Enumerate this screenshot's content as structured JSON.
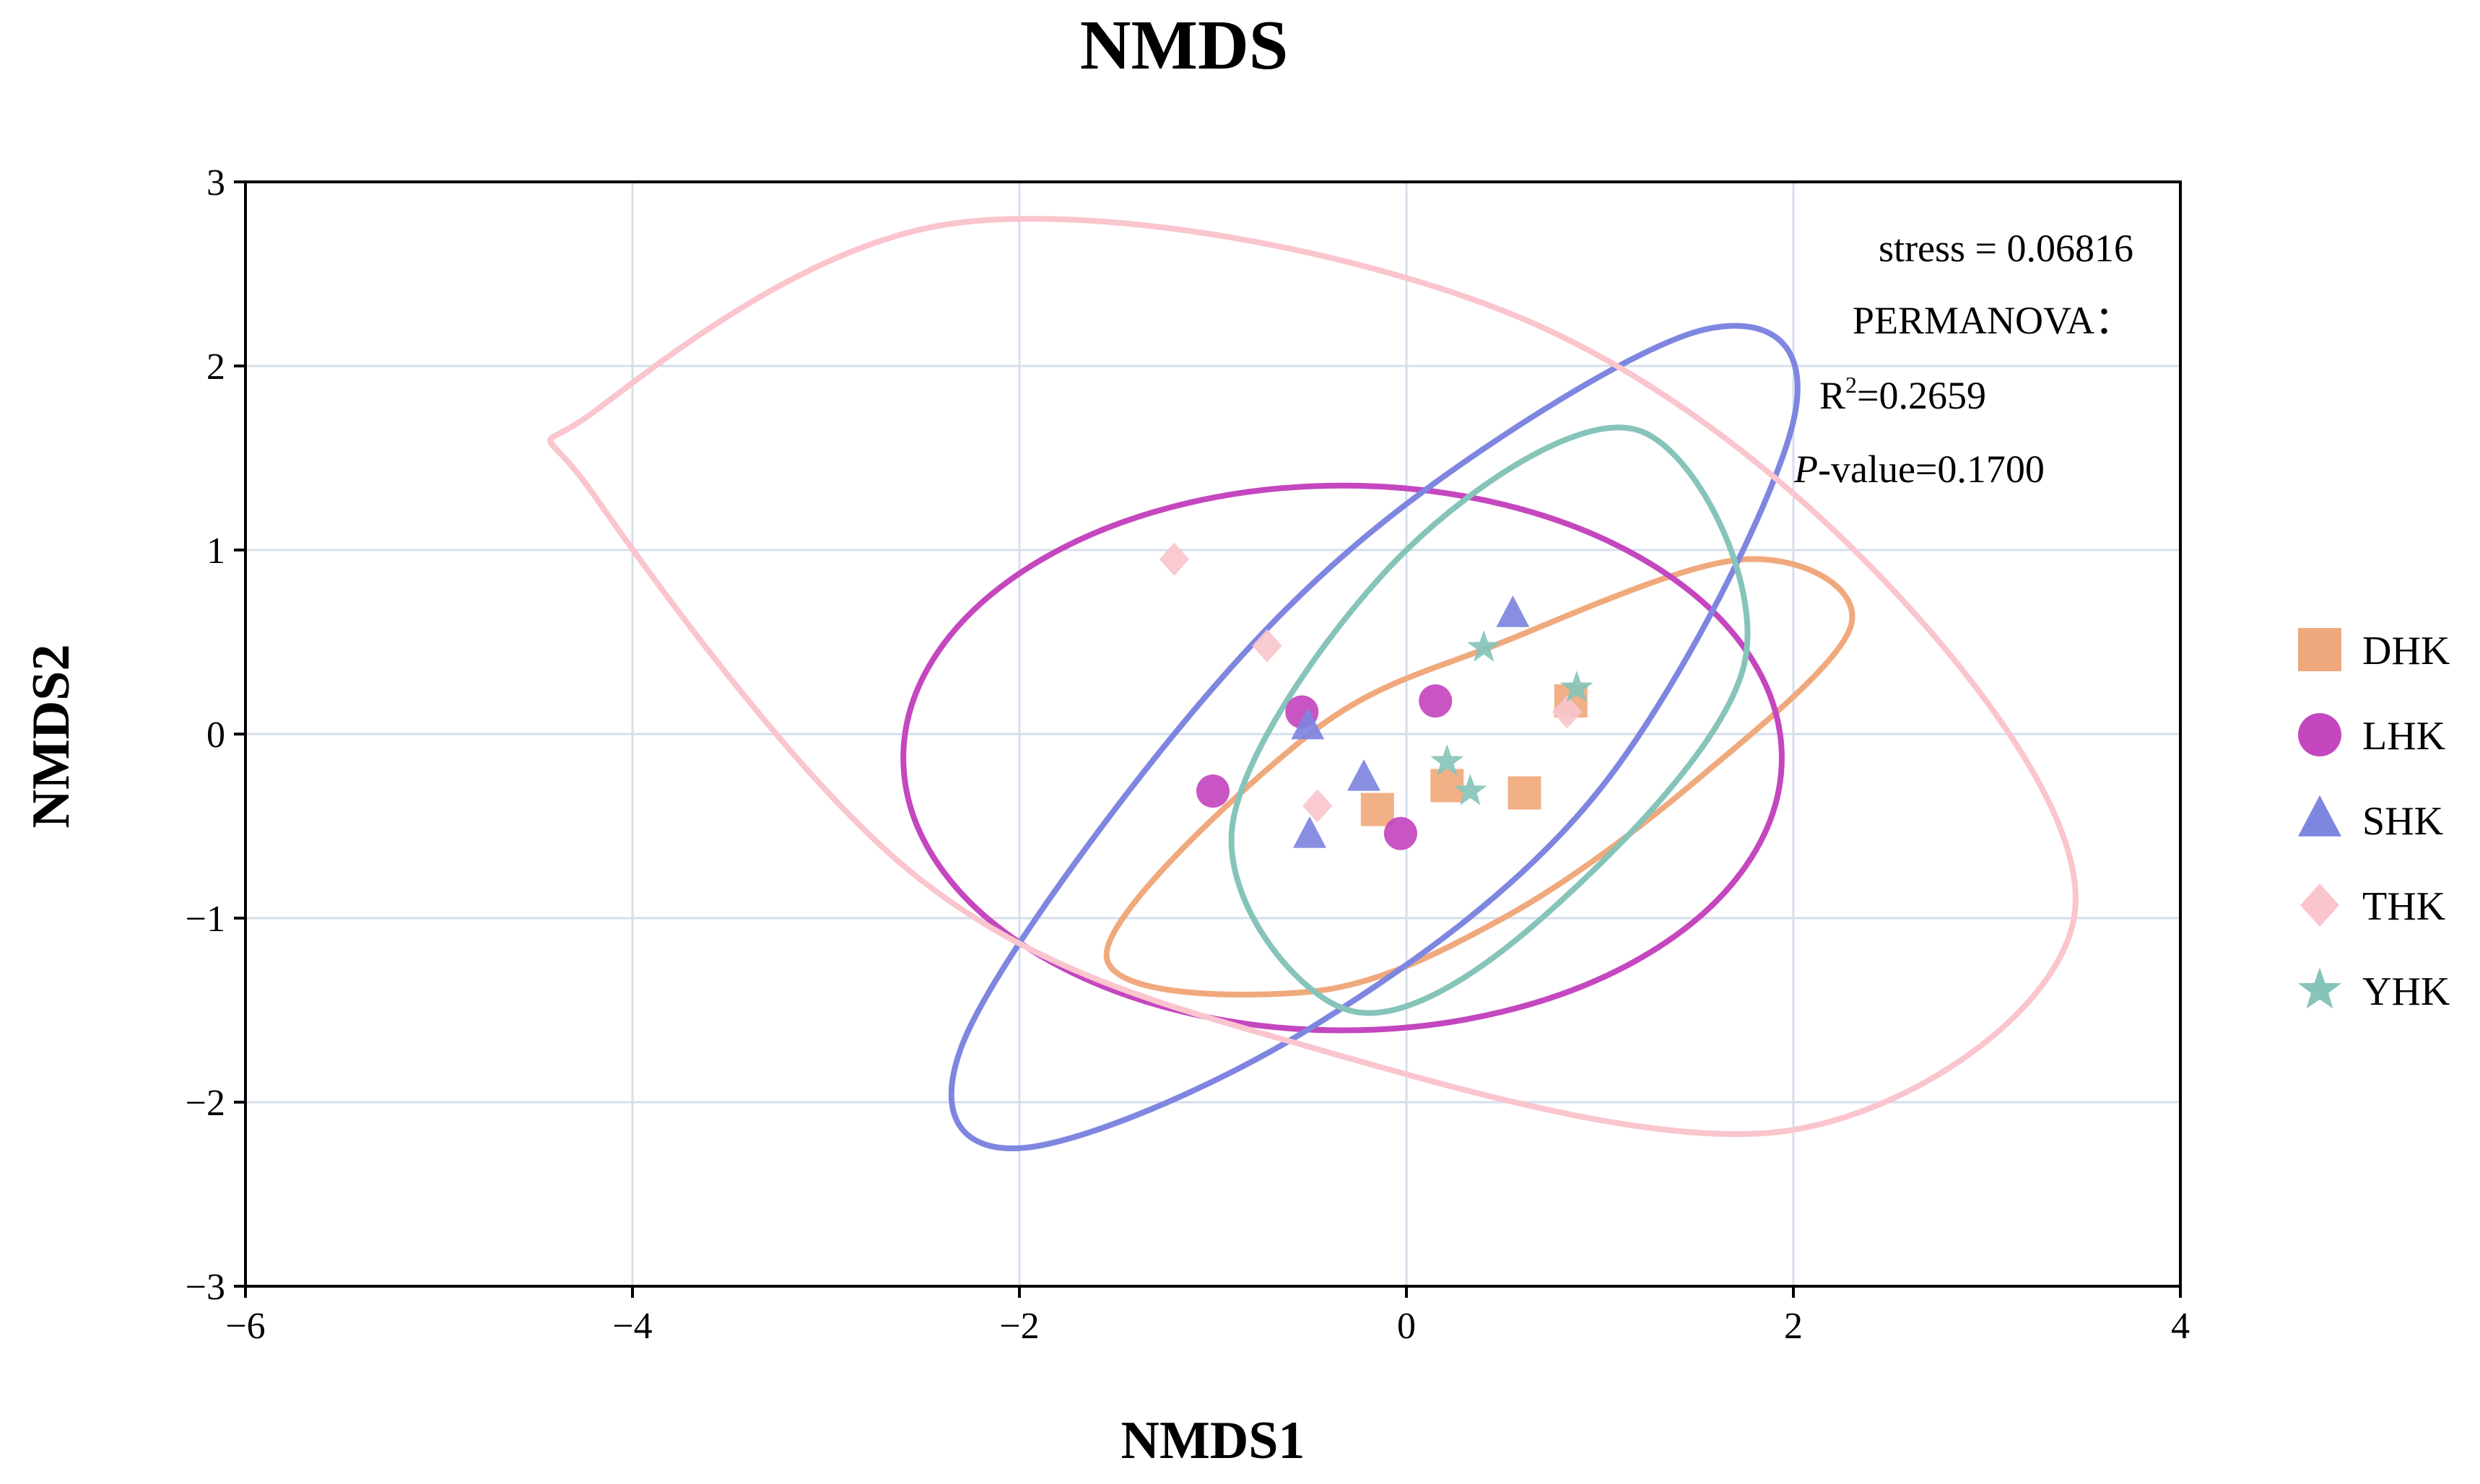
{
  "chart_data": {
    "type": "scatter",
    "title": "NMDS",
    "xlabel": "NMDS1",
    "ylabel": "NMDS2",
    "xlim": [
      -6,
      4
    ],
    "ylim": [
      -3,
      3
    ],
    "xticks": [
      -6,
      -4,
      -2,
      0,
      2,
      4
    ],
    "yticks": [
      -3,
      -2,
      -1,
      0,
      1,
      2,
      3
    ],
    "grid": true,
    "legend_position": "right",
    "annotations": {
      "stress": "stress = 0.06816",
      "permanova": "PERMANOVA：",
      "r2_prefix": "R",
      "r2_sup": "2",
      "r2_value": "=0.2659",
      "p_italic": "P",
      "p_value": "-value=0.1700"
    },
    "series": [
      {
        "name": "DHK",
        "color": "#F0A97C",
        "marker": "square",
        "points": [
          [
            -0.15,
            -0.41
          ],
          [
            0.21,
            -0.28
          ],
          [
            0.61,
            -0.32
          ],
          [
            0.85,
            0.18
          ]
        ],
        "ellipse": {
          "points": [
            [
              -1.55,
              -1.2
            ],
            [
              -0.5,
              -1.4
            ],
            [
              0.5,
              -1.0
            ],
            [
              1.5,
              -0.25
            ],
            [
              2.3,
              0.6
            ],
            [
              1.75,
              0.95
            ],
            [
              0.5,
              0.5
            ],
            [
              -0.5,
              0.0
            ],
            [
              -1.55,
              -1.2
            ]
          ]
        }
      },
      {
        "name": "LHK",
        "color": "#C447BF",
        "marker": "circle",
        "points": [
          [
            -1.0,
            -0.31
          ],
          [
            -0.54,
            0.12
          ],
          [
            0.15,
            0.18
          ],
          [
            -0.03,
            -0.54
          ]
        ],
        "ellipse": {
          "cx": -0.33,
          "cy": -0.13,
          "rx": 2.27,
          "ry": 1.48,
          "angle": 0
        }
      },
      {
        "name": "SHK",
        "color": "#7E86E0",
        "marker": "triangle",
        "points": [
          [
            -0.51,
            0.04
          ],
          [
            -0.5,
            -0.55
          ],
          [
            -0.22,
            -0.24
          ],
          [
            0.55,
            0.65
          ]
        ],
        "ellipse": {
          "points": [
            [
              -2.0,
              -2.25
            ],
            [
              -0.5,
              -1.6
            ],
            [
              1.0,
              -0.3
            ],
            [
              2.0,
              1.7
            ],
            [
              1.55,
              2.2
            ],
            [
              0.0,
              1.25
            ],
            [
              -1.2,
              0.0
            ],
            [
              -2.3,
              -1.7
            ],
            [
              -2.0,
              -2.25
            ]
          ]
        }
      },
      {
        "name": "THK",
        "color": "#FAC5CD",
        "marker": "diamond",
        "points": [
          [
            -1.2,
            0.95
          ],
          [
            -0.72,
            0.48
          ],
          [
            -0.46,
            -0.39
          ],
          [
            0.83,
            0.12
          ]
        ],
        "ellipse": {
          "points": [
            [
              -4.2,
              1.75
            ],
            [
              -2.3,
              2.78
            ],
            [
              0.5,
              2.3
            ],
            [
              2.5,
              0.8
            ],
            [
              3.45,
              -1.0
            ],
            [
              2.0,
              -2.15
            ],
            [
              -0.5,
              -1.7
            ],
            [
              -2.5,
              -0.8
            ],
            [
              -4.2,
              1.3
            ],
            [
              -4.2,
              1.75
            ]
          ]
        }
      },
      {
        "name": "YHK",
        "color": "#86C4BA",
        "marker": "star",
        "points": [
          [
            0.4,
            0.47
          ],
          [
            0.21,
            -0.15
          ],
          [
            0.33,
            -0.31
          ],
          [
            0.88,
            0.25
          ]
        ],
        "ellipse": {
          "points": [
            [
              -0.3,
              -1.5
            ],
            [
              0.7,
              -1.0
            ],
            [
              1.75,
              0.4
            ],
            [
              1.2,
              1.65
            ],
            [
              0.0,
              1.0
            ],
            [
              -0.9,
              -0.5
            ],
            [
              -0.3,
              -1.5
            ]
          ]
        }
      }
    ]
  }
}
